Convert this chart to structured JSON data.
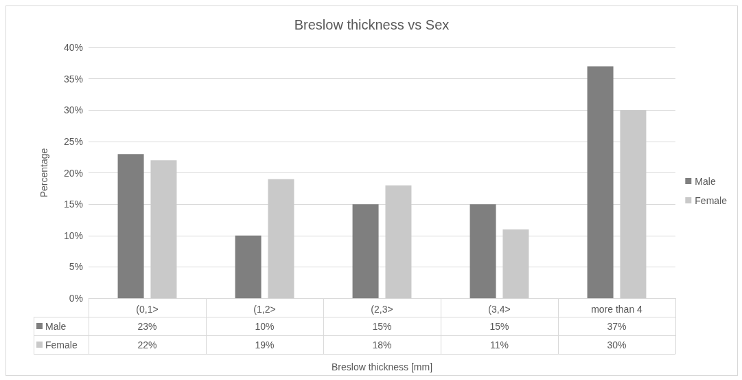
{
  "chart_data": {
    "type": "bar",
    "title": "Breslow thickness vs Sex",
    "xlabel": "Breslow thickness [mm]",
    "ylabel": "Percentage",
    "categories": [
      "(0,1>",
      "(1,2>",
      "(2,3>",
      "(3,4>",
      "more than 4"
    ],
    "series": [
      {
        "name": "Male",
        "color": "#7f7f7f",
        "values": [
          23,
          10,
          15,
          15,
          37
        ],
        "value_labels": [
          "23%",
          "10%",
          "15%",
          "15%",
          "37%"
        ]
      },
      {
        "name": "Female",
        "color": "#c9c9c9",
        "values": [
          22,
          19,
          18,
          11,
          30
        ],
        "value_labels": [
          "22%",
          "19%",
          "18%",
          "11%",
          "30%"
        ]
      }
    ],
    "ylim": [
      0,
      40
    ],
    "yticks": [
      {
        "value": 0,
        "label": "0%"
      },
      {
        "value": 5,
        "label": "5%"
      },
      {
        "value": 10,
        "label": "10%"
      },
      {
        "value": 15,
        "label": "15%"
      },
      {
        "value": 20,
        "label": "20%"
      },
      {
        "value": 25,
        "label": "25%"
      },
      {
        "value": 30,
        "label": "30%"
      },
      {
        "value": 35,
        "label": "35%"
      },
      {
        "value": 40,
        "label": "40%"
      }
    ],
    "grid": "y",
    "legend": "right"
  }
}
